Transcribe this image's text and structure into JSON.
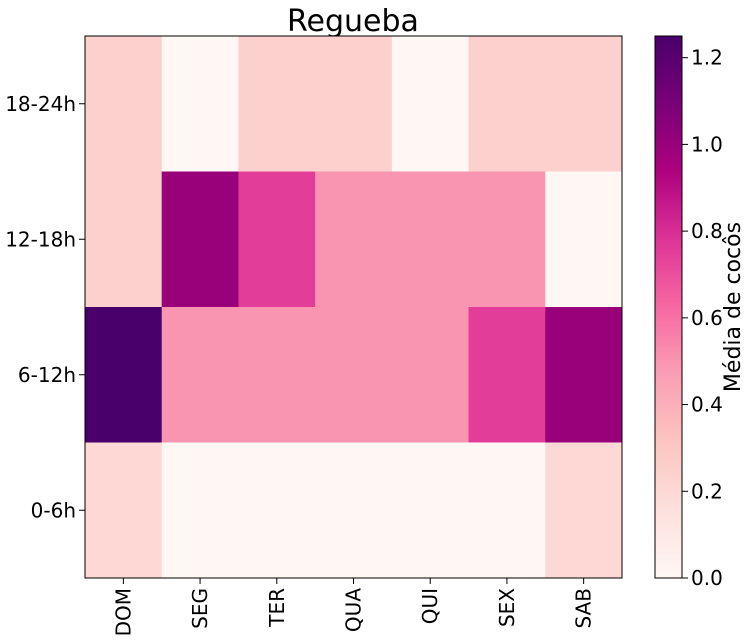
{
  "chart_data": {
    "type": "heatmap",
    "title": "Regueba",
    "x_categories": [
      "DOM",
      "SEG",
      "TER",
      "QUA",
      "QUI",
      "SEX",
      "SAB"
    ],
    "y_categories": [
      "18-24h",
      "12-18h",
      "6-12h",
      "0-6h"
    ],
    "values": [
      [
        0.25,
        0.0,
        0.25,
        0.25,
        0.0,
        0.25,
        0.25
      ],
      [
        0.25,
        1.0,
        0.75,
        0.5,
        0.5,
        0.5,
        0.0
      ],
      [
        1.25,
        0.5,
        0.5,
        0.5,
        0.5,
        0.75,
        1.0
      ],
      [
        0.2,
        0.0,
        0.0,
        0.0,
        0.0,
        0.0,
        0.2
      ]
    ],
    "colorbar": {
      "label": "Média de cocôs",
      "range": [
        0.0,
        1.25
      ],
      "ticks": [
        "0.0",
        "0.2",
        "0.4",
        "0.6",
        "0.8",
        "1.0",
        "1.2"
      ],
      "colormap": "RdPu"
    }
  }
}
